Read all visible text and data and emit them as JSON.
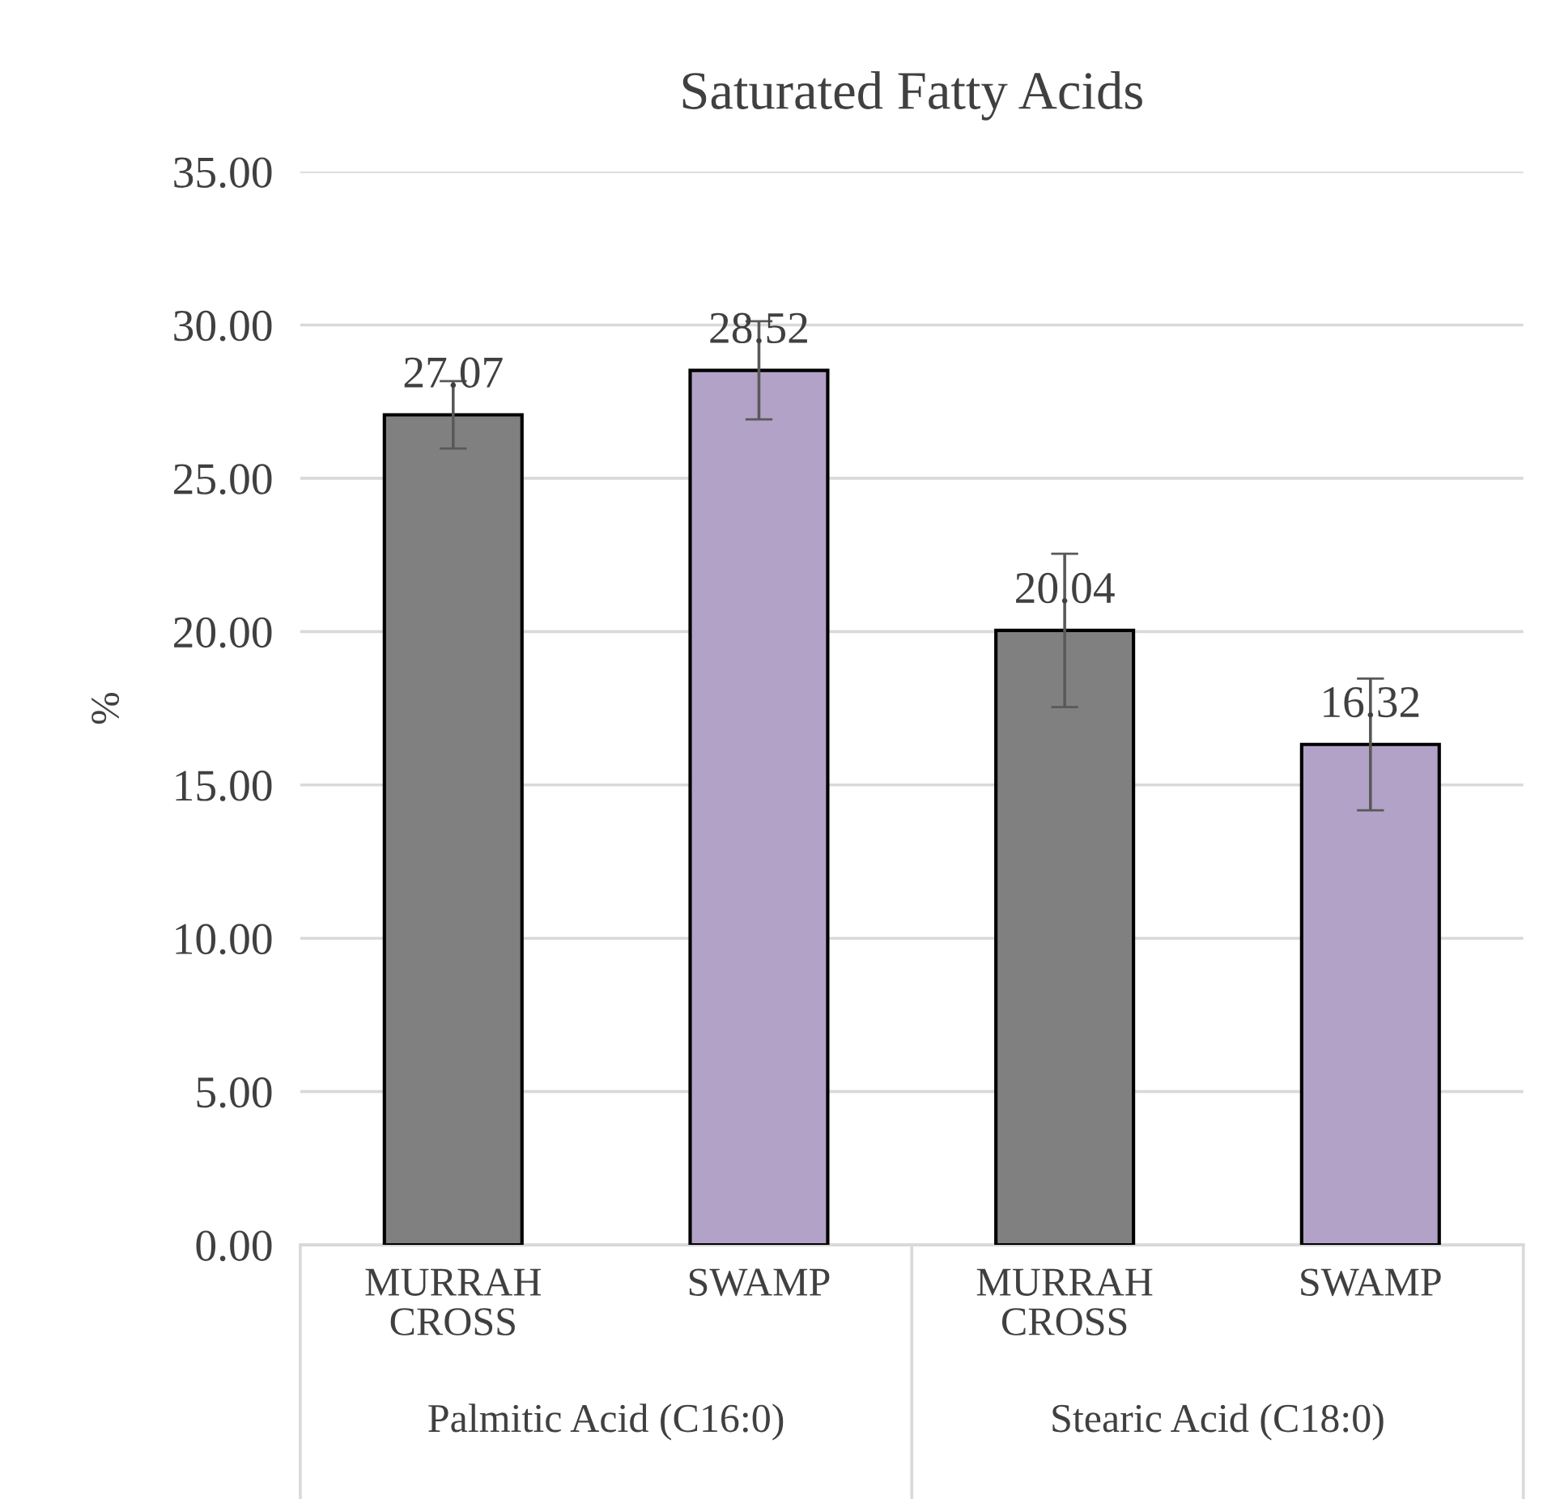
{
  "chart_data": {
    "type": "bar",
    "title": "Saturated Fatty Acids",
    "ylabel": "%",
    "categories": [
      "MURRAH\nCROSS",
      "SWAMP",
      "MURRAH\nCROSS",
      "SWAMP"
    ],
    "values": [
      27.07,
      28.52,
      20.04,
      16.32
    ],
    "colors": [
      "#808080",
      "#b3a2c7",
      "#808080",
      "#b3a2c7"
    ],
    "errors": [
      1.1,
      1.6,
      2.5,
      2.15
    ],
    "data_labels": true,
    "annotations": [
      "Palmitic Acid (C16:0)",
      "Stearic Acid (C18:0)"
    ],
    "ylim": [
      0,
      35
    ],
    "yticks": [
      {
        "value": 0,
        "label": "0.00"
      },
      {
        "value": 5,
        "label": "5.00"
      },
      {
        "value": 10,
        "label": "10.00"
      },
      {
        "value": 15,
        "label": "15.00"
      },
      {
        "value": 20,
        "label": "20.00"
      },
      {
        "value": 25,
        "label": "25.00"
      },
      {
        "value": 30,
        "label": "30.00"
      },
      {
        "value": 35,
        "label": "35.00"
      }
    ],
    "grid": "y",
    "legend": false
  }
}
